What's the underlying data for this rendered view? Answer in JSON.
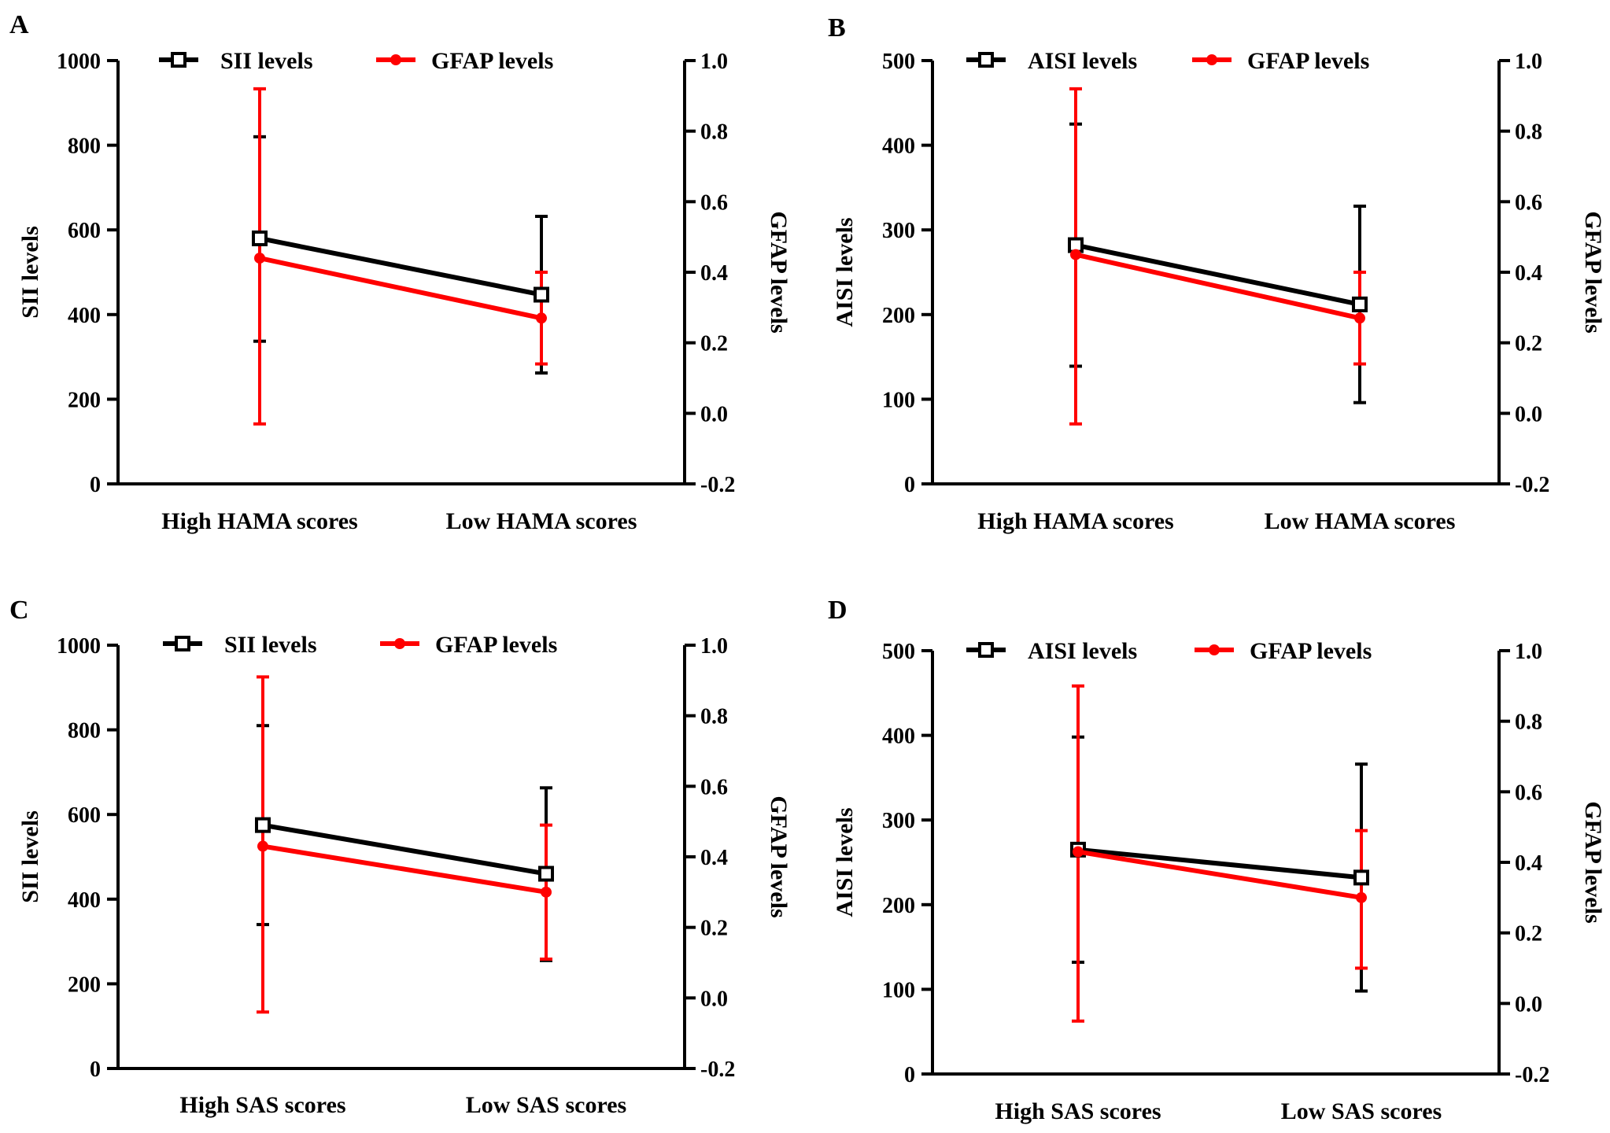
{
  "chart_data": [
    {
      "panel": "A",
      "type": "line",
      "categories": [
        "High HAMA scores",
        "Low HAMA scores"
      ],
      "ylabel": "SII levels",
      "ylim": [
        0,
        1000
      ],
      "yticks": [
        0,
        200,
        400,
        600,
        800,
        1000
      ],
      "y2label": "GFAP levels",
      "y2lim": [
        -0.2,
        1.0
      ],
      "y2ticks": [
        "-0.2",
        "0.0",
        "0.2",
        "0.4",
        "0.6",
        "0.8",
        "1.0"
      ],
      "legend": "top",
      "series": [
        {
          "name": "SII levels",
          "axis": "left",
          "color": "#000000",
          "marker": "square",
          "values": [
            580,
            447
          ],
          "err_low": [
            337,
            262
          ],
          "err_high": [
            820,
            632
          ]
        },
        {
          "name": "GFAP levels",
          "axis": "right",
          "color": "#ff0000",
          "marker": "circle",
          "values": [
            0.44,
            0.27
          ],
          "err_low": [
            -0.03,
            0.14
          ],
          "err_high": [
            0.92,
            0.4
          ]
        }
      ]
    },
    {
      "panel": "B",
      "type": "line",
      "categories": [
        "High HAMA scores",
        "Low HAMA scores"
      ],
      "ylabel": "AISI levels",
      "ylim": [
        0,
        500
      ],
      "yticks": [
        0,
        100,
        200,
        300,
        400,
        500
      ],
      "y2label": "GFAP levels",
      "y2lim": [
        -0.2,
        1.0
      ],
      "y2ticks": [
        "-0.2",
        "0.0",
        "0.2",
        "0.4",
        "0.6",
        "0.8",
        "1.0"
      ],
      "legend": "top",
      "series": [
        {
          "name": "AISI levels",
          "axis": "left",
          "color": "#000000",
          "marker": "square",
          "values": [
            282,
            212
          ],
          "err_low": [
            139,
            96
          ],
          "err_high": [
            425,
            328
          ]
        },
        {
          "name": "GFAP levels",
          "axis": "right",
          "color": "#ff0000",
          "marker": "circle",
          "values": [
            0.45,
            0.27
          ],
          "err_low": [
            -0.03,
            0.14
          ],
          "err_high": [
            0.92,
            0.4
          ]
        }
      ]
    },
    {
      "panel": "C",
      "type": "line",
      "categories": [
        "High SAS scores",
        "Low SAS scores"
      ],
      "ylabel": "SII levels",
      "ylim": [
        0,
        1000
      ],
      "yticks": [
        0,
        200,
        400,
        600,
        800,
        1000
      ],
      "y2label": "GFAP levels",
      "y2lim": [
        -0.2,
        1.0
      ],
      "y2ticks": [
        "-0.2",
        "0.0",
        "0.2",
        "0.4",
        "0.6",
        "0.8",
        "1.0"
      ],
      "legend": "top",
      "series": [
        {
          "name": "SII levels",
          "axis": "left",
          "color": "#000000",
          "marker": "square",
          "values": [
            575,
            460
          ],
          "err_low": [
            340,
            255
          ],
          "err_high": [
            810,
            663
          ]
        },
        {
          "name": "GFAP levels",
          "axis": "right",
          "color": "#ff0000",
          "marker": "circle",
          "values": [
            0.43,
            0.3
          ],
          "err_low": [
            -0.04,
            0.11
          ],
          "err_high": [
            0.91,
            0.49
          ]
        }
      ]
    },
    {
      "panel": "D",
      "type": "line",
      "categories": [
        "High SAS scores",
        "Low SAS scores"
      ],
      "ylabel": "AISI levels",
      "ylim": [
        0,
        500
      ],
      "yticks": [
        0,
        100,
        200,
        300,
        400,
        500
      ],
      "y2label": "GFAP levels",
      "y2lim": [
        -0.2,
        1.0
      ],
      "y2ticks": [
        "-0.2",
        "0.0",
        "0.2",
        "0.4",
        "0.6",
        "0.8",
        "1.0"
      ],
      "legend": "top",
      "series": [
        {
          "name": "AISI levels",
          "axis": "left",
          "color": "#000000",
          "marker": "square",
          "values": [
            265,
            232
          ],
          "err_low": [
            132,
            98
          ],
          "err_high": [
            398,
            366
          ]
        },
        {
          "name": "GFAP levels",
          "axis": "right",
          "color": "#ff0000",
          "marker": "circle",
          "values": [
            0.43,
            0.3
          ],
          "err_low": [
            -0.05,
            0.1
          ],
          "err_high": [
            0.9,
            0.49
          ]
        }
      ]
    }
  ]
}
